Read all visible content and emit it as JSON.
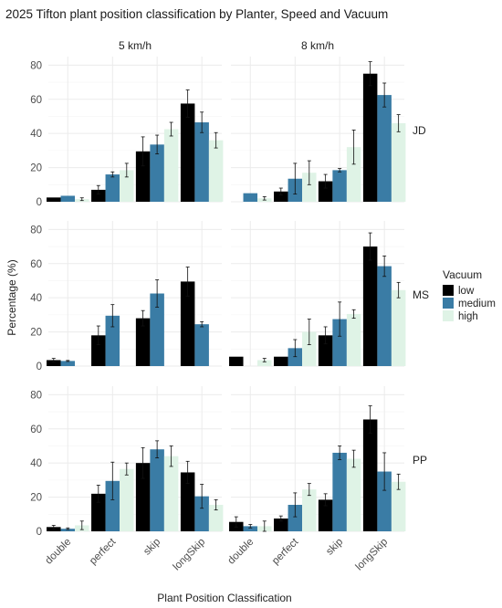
{
  "chart_data": {
    "type": "bar",
    "title": "2025 Tifton plant position classification by Planter, Speed and Vacuum",
    "xlabel": "Plant Position Classification",
    "ylabel": "Percentage (%)",
    "ylim": [
      0,
      85
    ],
    "y_ticks": [
      "0",
      "20",
      "40",
      "60",
      "80"
    ],
    "grid": true,
    "categories": [
      "double",
      "perfect",
      "skip",
      "longSkip"
    ],
    "legend": {
      "title": "Vacuum",
      "position": "right",
      "entries": [
        {
          "name": "low",
          "color": "#000000"
        },
        {
          "name": "medium",
          "color": "#3a7ca5"
        },
        {
          "name": "high",
          "color": "#dff3e6"
        }
      ]
    },
    "column_facets": [
      "5 km/h",
      "8 km/h"
    ],
    "row_facets": [
      "JD",
      "MS",
      "PP"
    ],
    "panels": [
      {
        "row": "JD",
        "col": "5 km/h",
        "series": [
          {
            "name": "low",
            "values": [
              2.5,
              7,
              29.5,
              57.5
            ],
            "errors": [
              0,
              2.5,
              8.5,
              8
            ]
          },
          {
            "name": "medium",
            "values": [
              3.5,
              16,
              33.5,
              46.5
            ],
            "errors": [
              0,
              1.5,
              5.5,
              6
            ]
          },
          {
            "name": "high",
            "values": [
              1.5,
              18.5,
              42.5,
              36
            ],
            "errors": [
              0.8,
              4,
              4,
              4.5
            ]
          }
        ]
      },
      {
        "row": "JD",
        "col": "8 km/h",
        "series": [
          {
            "name": "low",
            "values": [
              null,
              6,
              12,
              75
            ],
            "errors": [
              0,
              2,
              4,
              7
            ]
          },
          {
            "name": "medium",
            "values": [
              5,
              13.5,
              18.5,
              62.5
            ],
            "errors": [
              0,
              9,
              1,
              7
            ]
          },
          {
            "name": "high",
            "values": [
              2,
              17,
              32,
              46
            ],
            "errors": [
              1,
              7,
              10,
              5
            ]
          }
        ]
      },
      {
        "row": "MS",
        "col": "5 km/h",
        "series": [
          {
            "name": "low",
            "values": [
              3.5,
              18,
              28,
              49.5
            ],
            "errors": [
              1,
              5.5,
              4.5,
              8.5
            ]
          },
          {
            "name": "medium",
            "values": [
              3,
              29.5,
              42.5,
              24.5
            ],
            "errors": [
              0.3,
              6.5,
              8,
              1.5
            ]
          },
          {
            "name": "high",
            "values": [
              null,
              null,
              null,
              null
            ],
            "errors": [
              0,
              0,
              0,
              0
            ]
          }
        ]
      },
      {
        "row": "MS",
        "col": "8 km/h",
        "series": [
          {
            "name": "low",
            "values": [
              5.5,
              5.5,
              18,
              70
            ],
            "errors": [
              0,
              0,
              5,
              8
            ]
          },
          {
            "name": "medium",
            "values": [
              null,
              10.5,
              27.5,
              58.5
            ],
            "errors": [
              0,
              5,
              10,
              6
            ]
          },
          {
            "name": "high",
            "values": [
              3.5,
              20,
              30.5,
              44.5
            ],
            "errors": [
              1,
              7.5,
              2.5,
              4.5
            ]
          }
        ]
      },
      {
        "row": "PP",
        "col": "5 km/h",
        "series": [
          {
            "name": "low",
            "values": [
              2.5,
              22,
              40,
              34.5
            ],
            "errors": [
              1,
              5,
              9,
              6.5
            ]
          },
          {
            "name": "medium",
            "values": [
              1.5,
              29.5,
              48,
              20.5
            ],
            "errors": [
              0.5,
              11,
              5,
              7
            ]
          },
          {
            "name": "high",
            "values": [
              3.5,
              36.5,
              44,
              15.5
            ],
            "errors": [
              2.5,
              3.5,
              6,
              3
            ]
          }
        ]
      },
      {
        "row": "PP",
        "col": "8 km/h",
        "series": [
          {
            "name": "low",
            "values": [
              5.5,
              7.5,
              18.5,
              65.5
            ],
            "errors": [
              3,
              1.5,
              3.5,
              8
            ]
          },
          {
            "name": "medium",
            "values": [
              3,
              15.5,
              46,
              35
            ],
            "errors": [
              1,
              7,
              4,
              11
            ]
          },
          {
            "name": "high",
            "values": [
              3,
              24.5,
              42.5,
              29
            ],
            "errors": [
              3,
              3.5,
              5,
              4.5
            ]
          }
        ]
      }
    ]
  }
}
